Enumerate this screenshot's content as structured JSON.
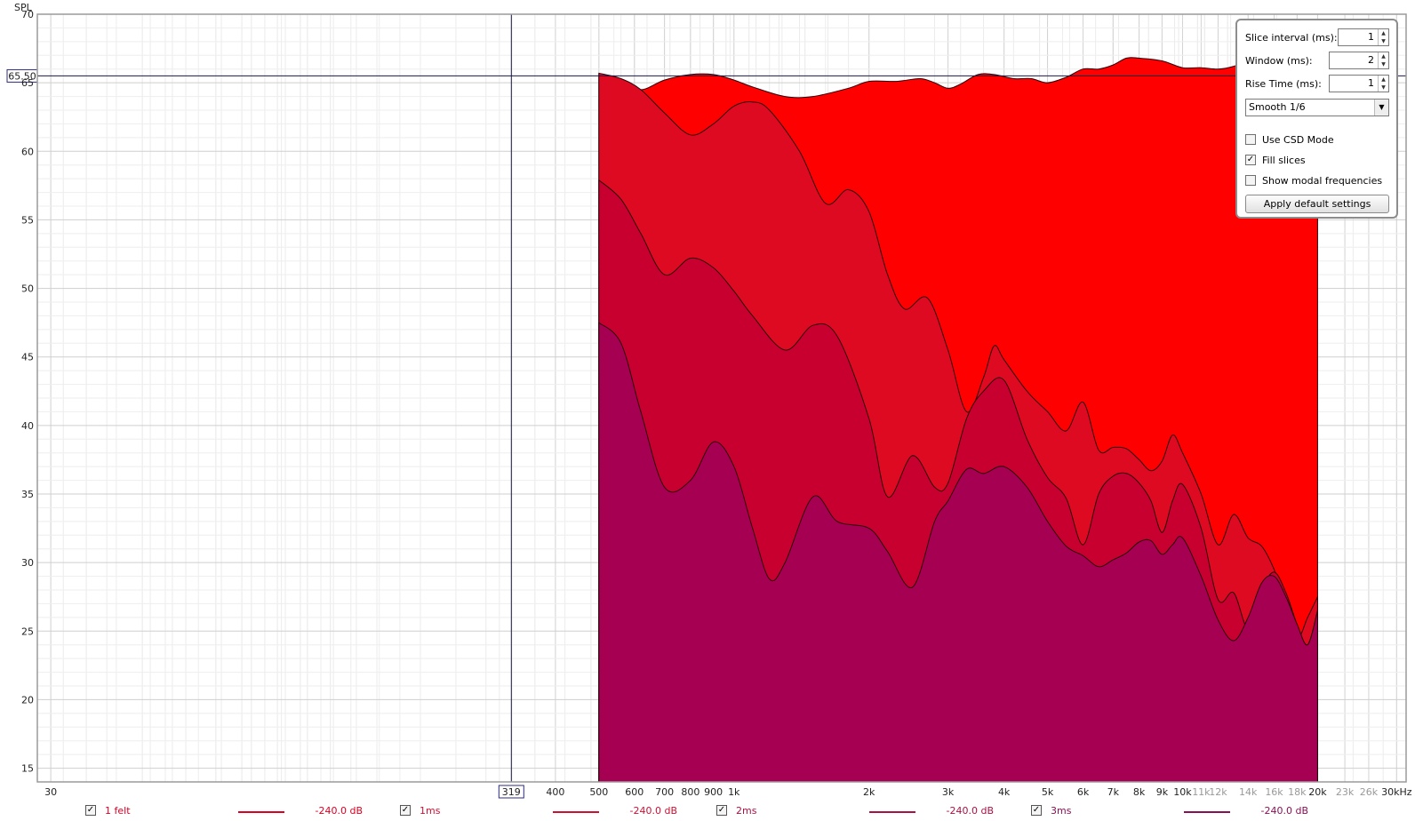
{
  "chart_data": {
    "type": "area",
    "ylabel": "SPL",
    "x_scale": "log",
    "xlim": [
      28,
      31500
    ],
    "ylim": [
      14,
      70
    ],
    "y_ticks": [
      70,
      65,
      60,
      55,
      50,
      45,
      40,
      35,
      30,
      25,
      20,
      15
    ],
    "x_ticks": [
      {
        "v": 30,
        "label": "30"
      },
      {
        "v": 400,
        "label": "400"
      },
      {
        "v": 500,
        "label": "500"
      },
      {
        "v": 600,
        "label": "600"
      },
      {
        "v": 700,
        "label": "700"
      },
      {
        "v": 800,
        "label": "800"
      },
      {
        "v": 900,
        "label": "900"
      },
      {
        "v": 1000,
        "label": "1k"
      },
      {
        "v": 2000,
        "label": "2k"
      },
      {
        "v": 3000,
        "label": "3k"
      },
      {
        "v": 4000,
        "label": "4k"
      },
      {
        "v": 5000,
        "label": "5k"
      },
      {
        "v": 6000,
        "label": "6k"
      },
      {
        "v": 7000,
        "label": "7k"
      },
      {
        "v": 8000,
        "label": "8k"
      },
      {
        "v": 9000,
        "label": "9k"
      },
      {
        "v": 10000,
        "label": "10k"
      },
      {
        "v": 11000,
        "label": "11k",
        "dim": true
      },
      {
        "v": 12000,
        "label": "12k",
        "dim": true
      },
      {
        "v": 14000,
        "label": "14k",
        "dim": true
      },
      {
        "v": 16000,
        "label": "16k",
        "dim": true
      },
      {
        "v": 18000,
        "label": "18k",
        "dim": true
      },
      {
        "v": 20000,
        "label": "20k"
      },
      {
        "v": 23000,
        "label": "23k",
        "dim": true
      },
      {
        "v": 26000,
        "label": "26k",
        "dim": true
      },
      {
        "v": 30000,
        "label": "30kHz"
      }
    ],
    "cursor": {
      "x_label": "319",
      "y_label": "65.50",
      "x": 319,
      "y": 65.5
    },
    "grid": true,
    "fill": true,
    "series": [
      {
        "name": "1 felt",
        "color": "#ff0000",
        "points": [
          [
            500,
            14
          ],
          [
            500,
            65.6
          ],
          [
            560,
            65.2
          ],
          [
            620,
            64.5
          ],
          [
            700,
            65.2
          ],
          [
            800,
            65.6
          ],
          [
            900,
            65.6
          ],
          [
            1000,
            65.2
          ],
          [
            1100,
            64.7
          ],
          [
            1300,
            64.0
          ],
          [
            1500,
            64.0
          ],
          [
            1800,
            64.6
          ],
          [
            2000,
            65.1
          ],
          [
            2300,
            65.1
          ],
          [
            2600,
            65.3
          ],
          [
            2800,
            65.0
          ],
          [
            3000,
            64.6
          ],
          [
            3200,
            64.9
          ],
          [
            3500,
            65.6
          ],
          [
            3800,
            65.6
          ],
          [
            4200,
            65.3
          ],
          [
            4600,
            65.3
          ],
          [
            5000,
            65.0
          ],
          [
            5500,
            65.4
          ],
          [
            6000,
            66.0
          ],
          [
            6500,
            66.0
          ],
          [
            7000,
            66.3
          ],
          [
            7500,
            66.8
          ],
          [
            8000,
            66.8
          ],
          [
            9000,
            66.6
          ],
          [
            10000,
            66.1
          ],
          [
            11000,
            66.1
          ],
          [
            12000,
            66.0
          ],
          [
            13000,
            66.2
          ],
          [
            14000,
            66.6
          ],
          [
            15000,
            66.3
          ],
          [
            16000,
            66.0
          ],
          [
            17000,
            65.5
          ],
          [
            18000,
            65.3
          ],
          [
            19000,
            64.8
          ],
          [
            20000,
            64.2
          ],
          [
            20000,
            14
          ]
        ]
      },
      {
        "name": "1ms",
        "color": "#dd0a22",
        "points": [
          [
            500,
            14
          ],
          [
            500,
            65.7
          ],
          [
            560,
            65.3
          ],
          [
            620,
            64.5
          ],
          [
            700,
            62.8
          ],
          [
            800,
            61.2
          ],
          [
            900,
            62.0
          ],
          [
            1000,
            63.3
          ],
          [
            1100,
            63.6
          ],
          [
            1200,
            63.0
          ],
          [
            1400,
            60.0
          ],
          [
            1600,
            56.2
          ],
          [
            1800,
            57.2
          ],
          [
            2000,
            55.6
          ],
          [
            2200,
            51.0
          ],
          [
            2400,
            48.5
          ],
          [
            2700,
            49.3
          ],
          [
            3000,
            45.5
          ],
          [
            3300,
            41.0
          ],
          [
            3600,
            43.5
          ],
          [
            3800,
            45.8
          ],
          [
            4000,
            44.8
          ],
          [
            4500,
            42.5
          ],
          [
            5000,
            41.0
          ],
          [
            5500,
            39.6
          ],
          [
            6000,
            41.7
          ],
          [
            6500,
            38.2
          ],
          [
            7000,
            38.4
          ],
          [
            7500,
            38.3
          ],
          [
            8000,
            37.5
          ],
          [
            8500,
            36.7
          ],
          [
            9000,
            37.4
          ],
          [
            9500,
            39.3
          ],
          [
            10000,
            38.0
          ],
          [
            11000,
            35.0
          ],
          [
            12000,
            31.3
          ],
          [
            13000,
            33.5
          ],
          [
            14000,
            31.8
          ],
          [
            15000,
            31.2
          ],
          [
            16000,
            29.5
          ],
          [
            17000,
            27.0
          ],
          [
            18000,
            24.5
          ],
          [
            19000,
            26.0
          ],
          [
            20000,
            27.5
          ],
          [
            20000,
            14
          ]
        ]
      },
      {
        "name": "2ms",
        "color": "#c8002f",
        "points": [
          [
            500,
            14
          ],
          [
            500,
            57.9
          ],
          [
            560,
            56.5
          ],
          [
            620,
            54.0
          ],
          [
            700,
            51.0
          ],
          [
            800,
            52.2
          ],
          [
            900,
            51.5
          ],
          [
            1000,
            49.8
          ],
          [
            1100,
            48.0
          ],
          [
            1300,
            45.5
          ],
          [
            1500,
            47.3
          ],
          [
            1700,
            46.5
          ],
          [
            2000,
            40.5
          ],
          [
            2200,
            34.8
          ],
          [
            2500,
            37.8
          ],
          [
            2800,
            35.5
          ],
          [
            3000,
            35.8
          ],
          [
            3300,
            40.5
          ],
          [
            3600,
            42.5
          ],
          [
            4000,
            43.3
          ],
          [
            4500,
            39.0
          ],
          [
            5000,
            36.2
          ],
          [
            5500,
            34.7
          ],
          [
            6000,
            31.3
          ],
          [
            6500,
            35.0
          ],
          [
            7000,
            36.3
          ],
          [
            7500,
            36.5
          ],
          [
            8000,
            35.8
          ],
          [
            8500,
            34.5
          ],
          [
            9000,
            32.2
          ],
          [
            9500,
            34.5
          ],
          [
            10000,
            35.7
          ],
          [
            11000,
            32.5
          ],
          [
            12000,
            27.3
          ],
          [
            13000,
            27.8
          ],
          [
            14000,
            25.2
          ],
          [
            15000,
            28.0
          ],
          [
            16000,
            29.3
          ],
          [
            17000,
            27.8
          ],
          [
            18000,
            25.5
          ],
          [
            19000,
            24.0
          ],
          [
            20000,
            26.5
          ],
          [
            20000,
            14
          ]
        ]
      },
      {
        "name": "3ms",
        "color": "#a50051",
        "points": [
          [
            500,
            14
          ],
          [
            500,
            47.5
          ],
          [
            560,
            46.0
          ],
          [
            620,
            41.0
          ],
          [
            700,
            35.5
          ],
          [
            800,
            36.0
          ],
          [
            900,
            38.8
          ],
          [
            1000,
            37.0
          ],
          [
            1100,
            32.5
          ],
          [
            1200,
            28.8
          ],
          [
            1300,
            30.0
          ],
          [
            1500,
            34.8
          ],
          [
            1700,
            33.0
          ],
          [
            2000,
            32.5
          ],
          [
            2200,
            30.8
          ],
          [
            2500,
            28.2
          ],
          [
            2800,
            33.0
          ],
          [
            3000,
            34.5
          ],
          [
            3300,
            36.8
          ],
          [
            3600,
            36.5
          ],
          [
            4000,
            37.0
          ],
          [
            4500,
            35.5
          ],
          [
            5000,
            33.0
          ],
          [
            5500,
            31.2
          ],
          [
            6000,
            30.5
          ],
          [
            6500,
            29.7
          ],
          [
            7000,
            30.2
          ],
          [
            7500,
            30.7
          ],
          [
            8000,
            31.5
          ],
          [
            8500,
            31.6
          ],
          [
            9000,
            30.6
          ],
          [
            9500,
            31.3
          ],
          [
            10000,
            31.8
          ],
          [
            11000,
            29.0
          ],
          [
            12000,
            25.8
          ],
          [
            13000,
            24.3
          ],
          [
            14000,
            26.0
          ],
          [
            15000,
            28.5
          ],
          [
            16000,
            29.0
          ],
          [
            17000,
            27.5
          ],
          [
            18000,
            25.5
          ],
          [
            19000,
            24.0
          ],
          [
            20000,
            26.5
          ],
          [
            20000,
            14
          ]
        ]
      }
    ]
  },
  "panel": {
    "slice_interval": {
      "label": "Slice interval (ms):",
      "value": "1"
    },
    "window": {
      "label": "Window (ms):",
      "value": "2"
    },
    "rise_time": {
      "label": "Rise Time (ms):",
      "value": "1"
    },
    "smoothing": {
      "value": "Smooth 1/6"
    },
    "use_csd": {
      "label": "Use CSD Mode",
      "checked": false
    },
    "fill_slices": {
      "label": "Fill slices",
      "checked": true
    },
    "show_modal": {
      "label": "Show modal frequencies",
      "checked": false
    },
    "apply_button": "Apply default settings"
  },
  "legend": [
    {
      "name": "1 felt",
      "value": "-240.0 dB",
      "color": "#dd0022",
      "checked": true
    },
    {
      "name": "1ms",
      "value": "-240.0 dB",
      "color": "#cc1133",
      "checked": true
    },
    {
      "name": "2ms",
      "value": "-240.0 dB",
      "color": "#aa1144",
      "checked": true
    },
    {
      "name": "3ms",
      "value": "-240.0 dB",
      "color": "#881155",
      "checked": true
    }
  ]
}
